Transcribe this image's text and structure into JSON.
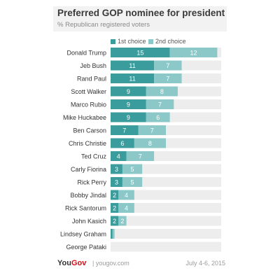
{
  "colors": {
    "first": "#3a9c9c",
    "second": "#8cc8c8",
    "track": "#ededed",
    "label": "#333333",
    "value": "#ffffff"
  },
  "header": {
    "title": "Preferred GOP nominee for president",
    "subtitle": "% Republican registered voters"
  },
  "footer": {
    "logo_you": "You",
    "logo_gov": "Gov",
    "site": "| yougov.com",
    "date": "July 4-6, 2015"
  },
  "chart_data": {
    "type": "bar",
    "orientation": "horizontal",
    "stacked": true,
    "categories": [
      "Donald Trump",
      "Jeb Bush",
      "Rand Paul",
      "Scott Walker",
      "Marco Rubio",
      "Mike Huckabee",
      "Ben Carson",
      "Chris Christie",
      "Ted Cruz",
      "Carly Fiorina",
      "Rick Perry",
      "Bobby Jindal",
      "Rick Santorum",
      "John Kasich",
      "Lindsey Graham",
      "George Pataki"
    ],
    "series": [
      {
        "name": "1st choice",
        "values": [
          15,
          11,
          11,
          9,
          9,
          9,
          7,
          6,
          4,
          3,
          3,
          2,
          2,
          2,
          0.5,
          0
        ]
      },
      {
        "name": "2nd choice",
        "values": [
          12,
          7,
          7,
          8,
          7,
          6,
          7,
          8,
          7,
          5,
          5,
          4,
          4,
          2,
          0.5,
          0
        ]
      }
    ],
    "value_labels": [
      [
        "15",
        "12"
      ],
      [
        "11",
        "7"
      ],
      [
        "11",
        "7"
      ],
      [
        "9",
        "8"
      ],
      [
        "9",
        "7"
      ],
      [
        "9",
        "6"
      ],
      [
        "7",
        "7"
      ],
      [
        "6",
        "8"
      ],
      [
        "4",
        "7"
      ],
      [
        "3",
        "5"
      ],
      [
        "3",
        "5"
      ],
      [
        "2",
        "4"
      ],
      [
        "2",
        "4"
      ],
      [
        "2",
        "2"
      ],
      [
        "",
        ""
      ],
      [
        "",
        ""
      ]
    ],
    "xlim": [
      0,
      28
    ],
    "legend_position": "top",
    "grid": false
  }
}
